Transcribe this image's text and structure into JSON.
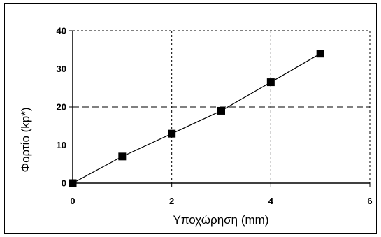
{
  "chart_data": {
    "type": "line",
    "title": "",
    "xlabel": "Υποχώρηση (mm)",
    "ylabel": "Φορτίο  (kp*)",
    "xlim": [
      0,
      6
    ],
    "ylim": [
      0,
      40
    ],
    "x_ticks": [
      "0",
      "2",
      "4",
      "6"
    ],
    "y_ticks": [
      "0",
      "10",
      "20",
      "30",
      "40"
    ],
    "grid": "dashed vertical and horizontal",
    "legend": "none",
    "series": [
      {
        "marker": "square",
        "color": "#000000",
        "x": [
          0,
          1,
          2,
          3,
          4,
          5
        ],
        "y": [
          0,
          7,
          13,
          19,
          26.5,
          34
        ]
      }
    ]
  }
}
